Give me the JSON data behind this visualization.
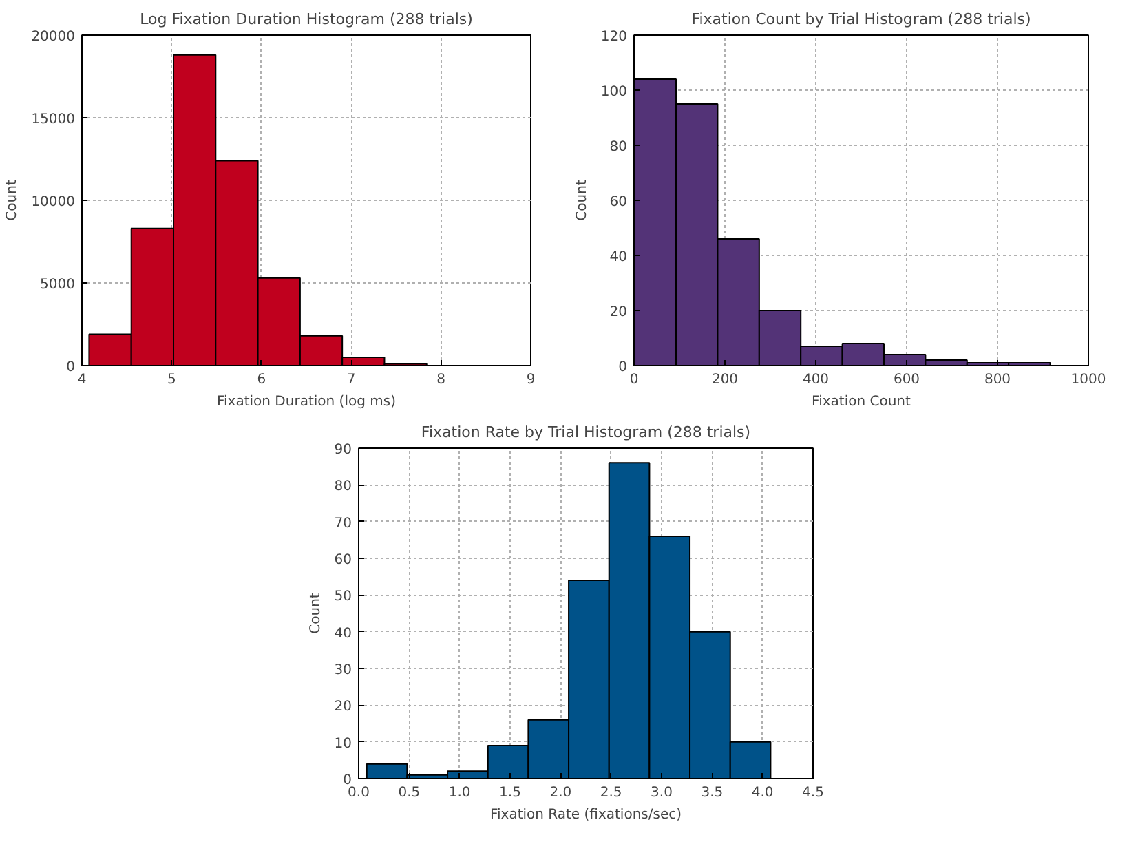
{
  "chart_data": [
    {
      "type": "histogram",
      "title": "Log Fixation Duration Histogram (288 trials)",
      "xlabel": "Fixation Duration (log ms)",
      "ylabel": "Count",
      "color": "#c0001e",
      "bins": [
        4.08,
        4.55,
        5.02,
        5.49,
        5.96,
        6.43,
        6.9,
        7.37,
        7.84,
        8.31,
        8.78
      ],
      "values": [
        1900,
        8300,
        18800,
        12400,
        5300,
        1800,
        500,
        100,
        null,
        null
      ],
      "xlim": [
        4,
        9
      ],
      "xticks": [
        4,
        5,
        6,
        7,
        8,
        9
      ],
      "ylim": [
        0,
        20000
      ],
      "yticks": [
        0,
        5000,
        10000,
        15000,
        20000
      ],
      "grid": true
    },
    {
      "type": "histogram",
      "title": "Fixation Count by Trial Histogram (288 trials)",
      "xlabel": "Fixation Count",
      "ylabel": "Count",
      "color": "#533377",
      "bins": [
        1,
        92.5,
        184,
        275.5,
        367,
        458.5,
        550,
        641.5,
        733,
        824.5,
        916
      ],
      "values": [
        104,
        95,
        46,
        20,
        7,
        8,
        4,
        2,
        1,
        1
      ],
      "xlim": [
        0,
        1000
      ],
      "xticks": [
        0,
        200,
        400,
        600,
        800,
        1000
      ],
      "ylim": [
        0,
        120
      ],
      "yticks": [
        0,
        20,
        40,
        60,
        80,
        100,
        120
      ],
      "grid": true
    },
    {
      "type": "histogram",
      "title": "Fixation Rate by Trial Histogram (288 trials)",
      "xlabel": "Fixation Rate (fixations/sec)",
      "ylabel": "Count",
      "color": "#005289",
      "bins": [
        0.08,
        0.48,
        0.88,
        1.28,
        1.68,
        2.08,
        2.48,
        2.88,
        3.28,
        3.68,
        4.08
      ],
      "values": [
        4,
        1,
        2,
        9,
        16,
        54,
        86,
        66,
        40,
        10
      ],
      "xlim": [
        0,
        4.5
      ],
      "xticks": [
        {
          "value": 0,
          "label": "0.0"
        },
        {
          "value": 0.5,
          "label": "0.5"
        },
        {
          "value": 1,
          "label": "1.0"
        },
        {
          "value": 1.5,
          "label": "1.5"
        },
        {
          "value": 2,
          "label": "2.0"
        },
        {
          "value": 2.5,
          "label": "2.5"
        },
        {
          "value": 3,
          "label": "3.0"
        },
        {
          "value": 3.5,
          "label": "3.5"
        },
        {
          "value": 4,
          "label": "4.0"
        },
        {
          "value": 4.5,
          "label": "4.5"
        }
      ],
      "ylim": [
        0,
        90
      ],
      "yticks": [
        0,
        10,
        20,
        30,
        40,
        50,
        60,
        70,
        80,
        90
      ],
      "grid": true
    }
  ]
}
